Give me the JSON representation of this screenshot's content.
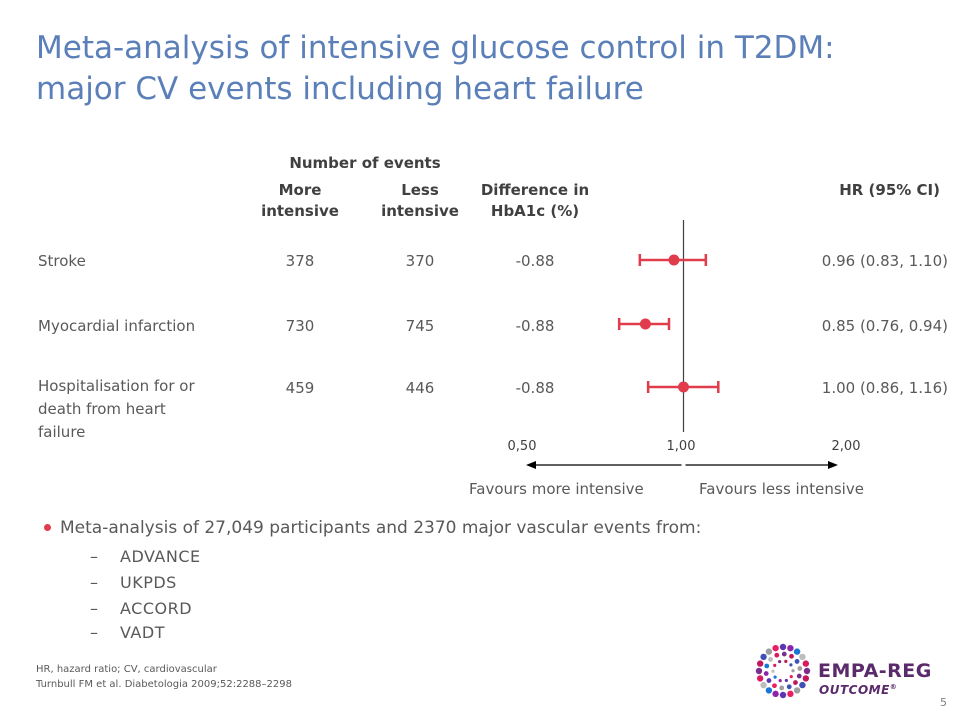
{
  "title": "Meta-analysis of intensive glucose control in T2DM: major CV events including heart failure",
  "table": {
    "header_group": "Number of events",
    "col_more": "More intensive",
    "col_more_l1": "More",
    "col_more_l2": "intensive",
    "col_less_l1": "Less",
    "col_less_l2": "intensive",
    "col_diff_l1": "Difference in",
    "col_diff_l2": "HbA1c (%)",
    "col_hr": "HR (95% CI)"
  },
  "chart_data": {
    "type": "forest",
    "x_scale": "log",
    "xlim": [
      0.5,
      2.0
    ],
    "x_ticks": [
      "0,50",
      "1,00",
      "2,00"
    ],
    "reference_line": 1.0,
    "rows": [
      {
        "label": "Stroke",
        "more": "378",
        "less": "370",
        "diff": "-0.88",
        "hr": 0.96,
        "lo": 0.83,
        "hi": 1.1,
        "hr_text": "0.96 (0.83, 1.10)"
      },
      {
        "label": "Myocardial infarction",
        "more": "730",
        "less": "745",
        "diff": "-0.88",
        "hr": 0.85,
        "lo": 0.76,
        "hi": 0.94,
        "hr_text": "0.85 (0.76, 0.94)"
      },
      {
        "label_l1": "Hospitalisation for or",
        "label_l2": "death from heart",
        "label_l3": "failure",
        "more": "459",
        "less": "446",
        "diff": "-0.88",
        "hr": 1.0,
        "lo": 0.86,
        "hi": 1.16,
        "hr_text": "1.00 (0.86, 1.16)"
      }
    ],
    "favours_left": "Favours more intensive",
    "favours_right": "Favours less intensive",
    "marker_color": "#e03c4b",
    "line_color": "#404040"
  },
  "bullets": {
    "main": "Meta-analysis of 27,049 participants and 2370 major vascular events from:",
    "items": [
      "ADVANCE",
      "UKPDS",
      "ACCORD",
      "VADT"
    ],
    "dash": "–"
  },
  "footer": {
    "line1": "HR, hazard ratio; CV, cardiovascular",
    "line2": "Turnbull FM et al. Diabetologia 2009;52:2288–2298"
  },
  "logo": {
    "line1": "EMPA-REG",
    "line2": "OUTCOME",
    "reg": "®"
  },
  "page_number": "5",
  "colors": {
    "title": "#5b7fb8",
    "bullet": "#e03c4b",
    "marker": "#e03c4b"
  }
}
